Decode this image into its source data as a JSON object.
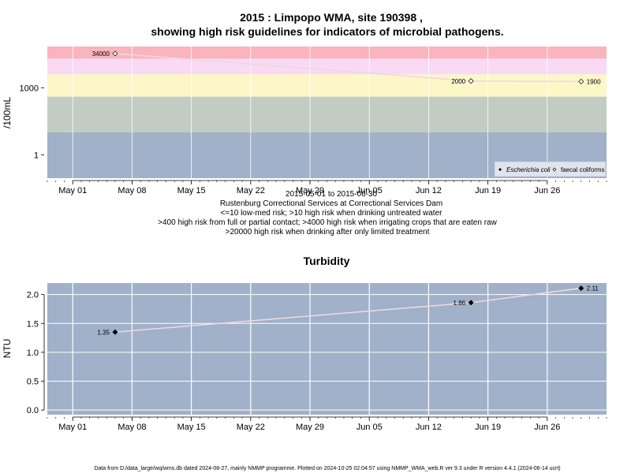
{
  "colors": {
    "background": "#ffffff",
    "band_red": "#fab4be",
    "band_pink": "#f9d9f3",
    "band_yellow": "#fdf7c8",
    "band_green": "#c3ccc3",
    "band_blue": "#a0b1c9",
    "grid": "#ffffff",
    "line": "#ebd8e6",
    "legend_bg": "#dfe4ed"
  },
  "chart_data": [
    {
      "type": "scatter",
      "title_line1": "2015 : Limpopo WMA, site 190398 ,",
      "title_line2": "showing high risk guidelines for indicators of microbial pathogens.",
      "ylabel": "/100mL",
      "yscale": "log",
      "ylim": [
        0.09,
        70000
      ],
      "xlim": [
        "2015-04-28",
        "2015-07-03"
      ],
      "x_ticks": [
        "May 01",
        "May 08",
        "May 15",
        "May 22",
        "May 29",
        "Jun 05",
        "Jun 12",
        "Jun 19",
        "Jun 26"
      ],
      "x_tick_dates": [
        "2015-05-01",
        "2015-05-08",
        "2015-05-15",
        "2015-05-22",
        "2015-05-29",
        "2015-06-05",
        "2015-06-12",
        "2015-06-19",
        "2015-06-26"
      ],
      "y_ticks": [
        1,
        1000
      ],
      "y_tick_labels": [
        "1",
        "1000"
      ],
      "bands": [
        {
          "from": 0.09,
          "to": 10,
          "color": "band_blue"
        },
        {
          "from": 10,
          "to": 400,
          "color": "band_green"
        },
        {
          "from": 400,
          "to": 4000,
          "color": "band_yellow"
        },
        {
          "from": 4000,
          "to": 20000,
          "color": "band_pink"
        },
        {
          "from": 20000,
          "to": 70000,
          "color": "band_red"
        }
      ],
      "series": [
        {
          "name": "faecal coliforms",
          "marker": "open-diamond",
          "points": [
            {
              "x": "2015-05-06",
              "y": 34000,
              "label": "34000"
            },
            {
              "x": "2015-06-17",
              "y": 2000,
              "label": "2000"
            },
            {
              "x": "2015-06-30",
              "y": 1900,
              "label": "1900"
            }
          ]
        }
      ],
      "legend": {
        "position": "bottom-right",
        "entries": [
          {
            "name": "Escherichia coli",
            "marker": "filled-diamond"
          },
          {
            "name": "faecal coliforms",
            "marker": "open-diamond"
          }
        ]
      },
      "notes": [
        "2015-05-01 to 2015-06-30",
        "Rustenburg Correctional Services at Correctional Services Dam",
        "<=10 low-med risk; >10 high risk when drinking untreated water",
        ">400 high risk from full or partial contact; >4000 high risk when irrigating crops that are eaten raw",
        ">20000 high risk when drinking after only limited treatment"
      ]
    },
    {
      "type": "scatter",
      "title": "Turbidity",
      "ylabel": "NTU",
      "ylim": [
        -0.08,
        2.2
      ],
      "xlim": [
        "2015-04-28",
        "2015-07-03"
      ],
      "x_ticks": [
        "May 01",
        "May 08",
        "May 15",
        "May 22",
        "May 29",
        "Jun 05",
        "Jun 12",
        "Jun 19",
        "Jun 26"
      ],
      "x_tick_dates": [
        "2015-05-01",
        "2015-05-08",
        "2015-05-15",
        "2015-05-22",
        "2015-05-29",
        "2015-06-05",
        "2015-06-12",
        "2015-06-19",
        "2015-06-26"
      ],
      "y_ticks": [
        0.0,
        0.5,
        1.0,
        1.5,
        2.0
      ],
      "y_tick_labels": [
        "0.0",
        "0.5",
        "1.0",
        "1.5",
        "2.0"
      ],
      "series": [
        {
          "name": "",
          "marker": "filled-diamond",
          "points": [
            {
              "x": "2015-05-06",
              "y": 1.35,
              "label": "1.35"
            },
            {
              "x": "2015-06-17",
              "y": 1.86,
              "label": "1.86"
            },
            {
              "x": "2015-06-30",
              "y": 2.11,
              "label": "2.11"
            }
          ]
        }
      ]
    }
  ],
  "footer": "Data from D:/data_large/wq/wms.db dated 2024-08-27, mainly NMMP programme. Plotted on 2024-10-25 02:04:57 using NMMP_WMA_web.R ver 9.3 under R version 4.4.1 (2024-06-14 ucrt)"
}
